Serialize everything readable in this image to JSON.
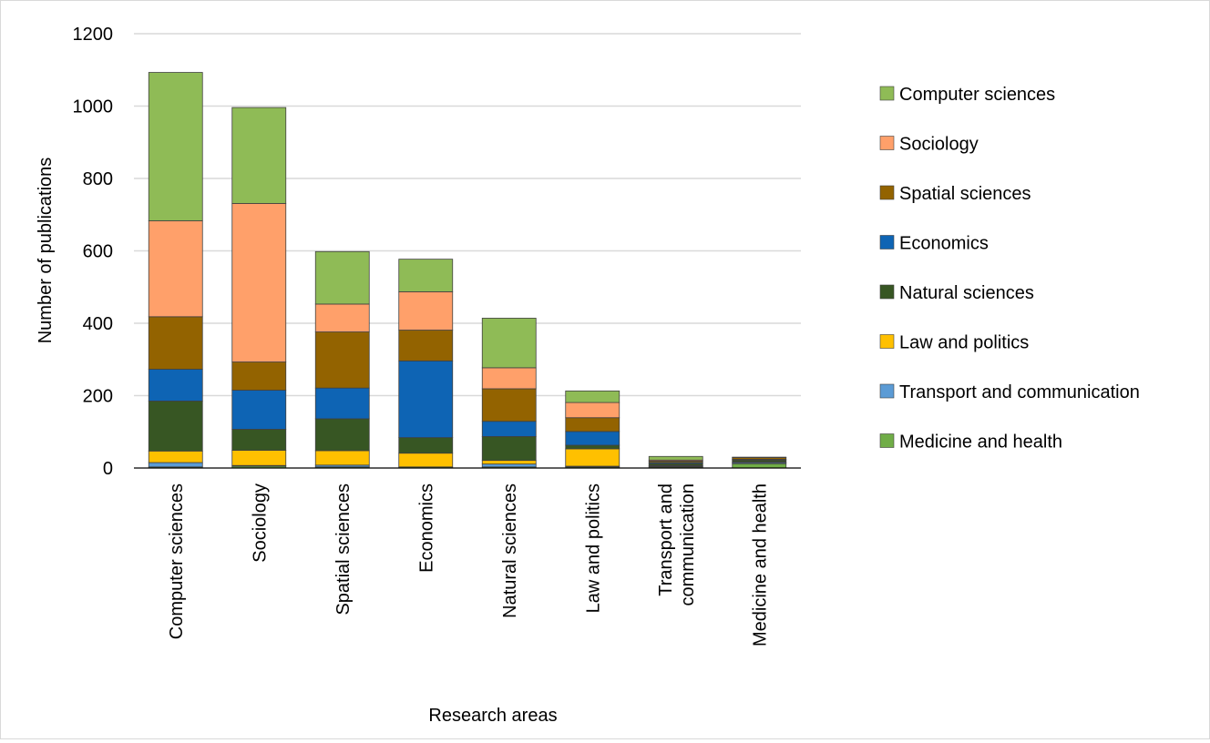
{
  "chart_data": {
    "type": "bar",
    "stacked": true,
    "title": "",
    "xlabel": "Research areas",
    "ylabel": "Number of publications",
    "ylim": [
      0,
      1200
    ],
    "yticks": [
      "0",
      "200",
      "400",
      "600",
      "800",
      "1000",
      "1200"
    ],
    "grid": true,
    "legend_position": "right",
    "categories": [
      "Computer sciences",
      "Sociology",
      "Spatial sciences",
      "Economics",
      "Natural sciences",
      "Law and politics",
      "Transport and communication",
      "Medicine and health"
    ],
    "series": [
      {
        "name": "Medicine and health",
        "color": "#70ad47",
        "values": [
          3,
          5,
          3,
          3,
          3,
          3,
          3,
          12
        ]
      },
      {
        "name": "Transport and communication",
        "color": "#5b9bd5",
        "values": [
          12,
          2,
          5,
          0,
          8,
          2,
          2,
          3
        ]
      },
      {
        "name": "Law and politics",
        "color": "#ffc000",
        "values": [
          32,
          42,
          40,
          38,
          10,
          48,
          2,
          2
        ]
      },
      {
        "name": "Natural sciences",
        "color": "#375623",
        "values": [
          138,
          58,
          88,
          43,
          66,
          10,
          5,
          5
        ]
      },
      {
        "name": "Economics",
        "color": "#0e64b4",
        "values": [
          88,
          108,
          85,
          212,
          42,
          38,
          3,
          2
        ]
      },
      {
        "name": "Spatial sciences",
        "color": "#936300",
        "values": [
          145,
          78,
          155,
          85,
          90,
          38,
          4,
          5
        ]
      },
      {
        "name": "Sociology",
        "color": "#ffa06a",
        "values": [
          265,
          438,
          77,
          106,
          58,
          42,
          3,
          0
        ]
      },
      {
        "name": "Computer sciences",
        "color": "#8fbb56",
        "values": [
          410,
          265,
          145,
          90,
          137,
          32,
          10,
          1
        ]
      }
    ],
    "legend_order": [
      "Computer sciences",
      "Sociology",
      "Spatial sciences",
      "Economics",
      "Natural sciences",
      "Law and politics",
      "Transport and communication",
      "Medicine and health"
    ]
  }
}
